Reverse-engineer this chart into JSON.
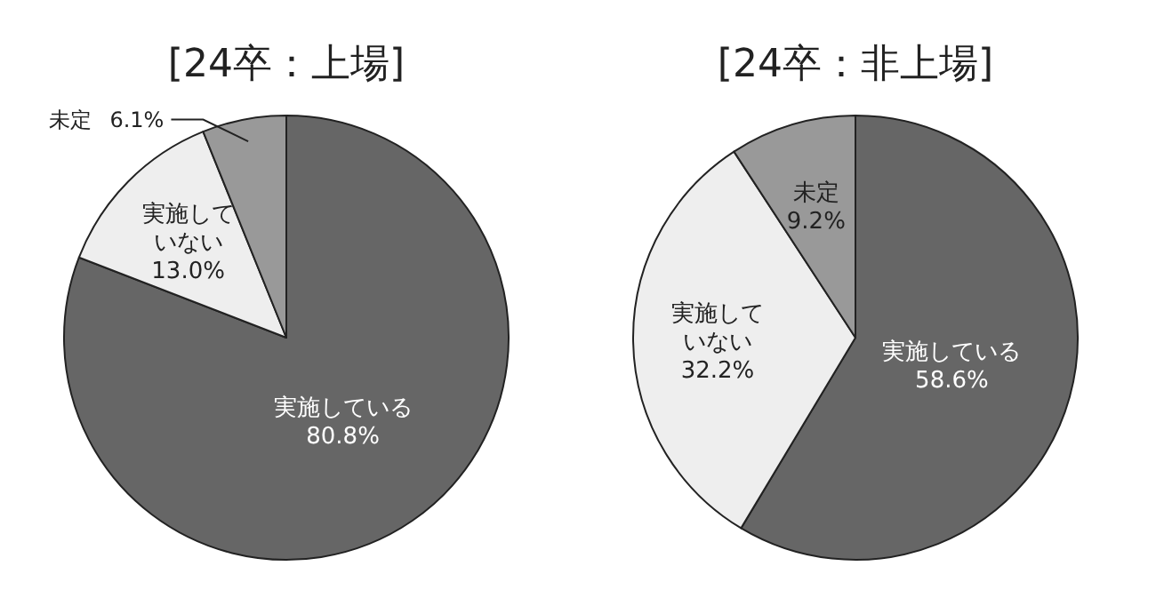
{
  "chart_data": [
    {
      "type": "pie",
      "title": "[24卒：上場]",
      "categories": [
        "実施している",
        "実施していない",
        "未定"
      ],
      "values": [
        80.8,
        13.0,
        6.1
      ],
      "colors": [
        "#666666",
        "#eeeeee",
        "#999999"
      ],
      "value_labels": [
        "80.8%",
        "13.0%",
        "6.1%"
      ]
    },
    {
      "type": "pie",
      "title": "[24卒：非上場]",
      "categories": [
        "実施している",
        "実施していない",
        "未定"
      ],
      "values": [
        58.6,
        32.2,
        9.2
      ],
      "colors": [
        "#666666",
        "#eeeeee",
        "#999999"
      ],
      "value_labels": [
        "58.6%",
        "32.2%",
        "9.2%"
      ]
    }
  ]
}
